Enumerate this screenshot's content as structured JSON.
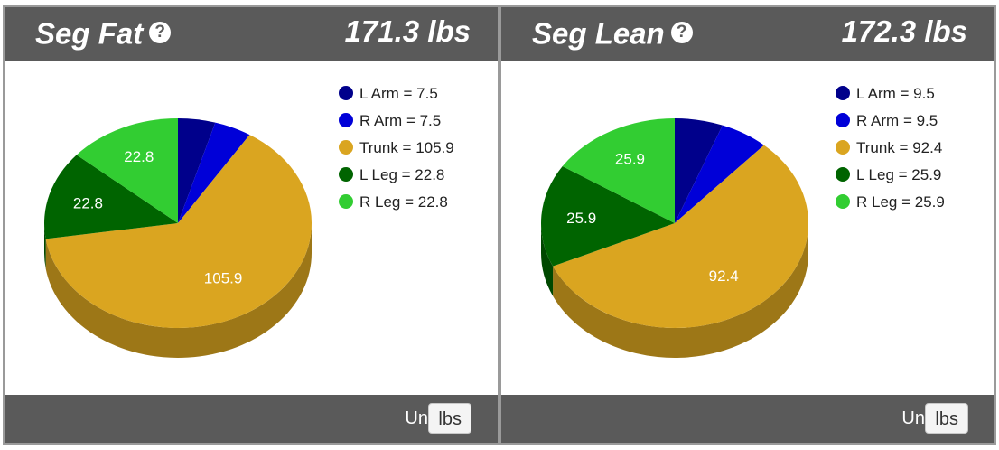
{
  "panels": [
    {
      "title": "Seg Fat",
      "total": "171.3 lbs",
      "units_label": "Units",
      "units_value": "lbs"
    },
    {
      "title": "Seg Lean",
      "total": "172.3 lbs",
      "units_label": "Units",
      "units_value": "lbs"
    }
  ],
  "help_icon": "question-circle-icon",
  "colors": {
    "header_bg": "#5a5a5a",
    "L Arm": "#00008b",
    "R Arm": "#0000d8",
    "Trunk": "#daa520",
    "L Leg": "#006400",
    "R Leg": "#32cd32"
  },
  "chart_data": [
    {
      "type": "pie",
      "title": "Seg Fat",
      "categories": [
        "L Arm",
        "R Arm",
        "Trunk",
        "L Leg",
        "R Leg"
      ],
      "values": [
        7.5,
        7.5,
        105.9,
        22.8,
        22.8
      ],
      "legend": [
        "L Arm = 7.5",
        "R Arm = 7.5",
        "Trunk = 105.9",
        "L Leg = 22.8",
        "R Leg = 22.8"
      ],
      "data_labels": [
        "",
        "",
        "105.9",
        "22.8",
        "22.8"
      ],
      "legend_position": "top-right",
      "style": "3d"
    },
    {
      "type": "pie",
      "title": "Seg Lean",
      "categories": [
        "L Arm",
        "R Arm",
        "Trunk",
        "L Leg",
        "R Leg"
      ],
      "values": [
        9.5,
        9.5,
        92.4,
        25.9,
        25.9
      ],
      "legend": [
        "L Arm = 9.5",
        "R Arm = 9.5",
        "Trunk = 92.4",
        "L Leg = 25.9",
        "R Leg = 25.9"
      ],
      "data_labels": [
        "",
        "",
        "92.4",
        "25.9",
        "25.9"
      ],
      "legend_position": "top-right",
      "style": "3d"
    }
  ]
}
